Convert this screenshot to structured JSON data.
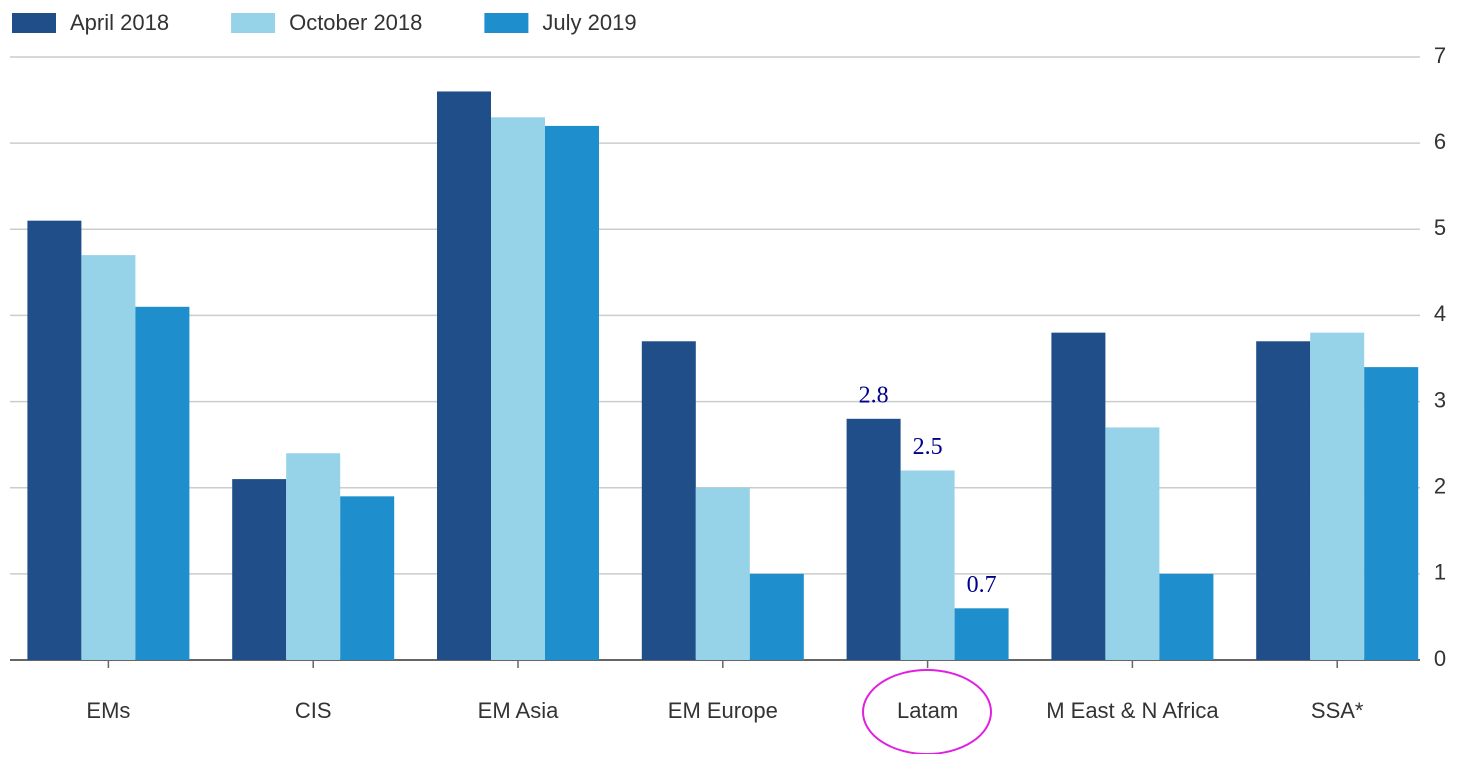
{
  "chart_data": {
    "type": "bar",
    "categories": [
      "EMs",
      "CIS",
      "EM Asia",
      "EM Europe",
      "Latam",
      "M East & N Africa",
      "SSA*"
    ],
    "series": [
      {
        "name": "April 2018",
        "color": "#1f4e89",
        "values": [
          5.1,
          2.1,
          6.6,
          3.7,
          2.8,
          3.8,
          3.7
        ]
      },
      {
        "name": "October 2018",
        "color": "#96d3e8",
        "values": [
          4.7,
          2.4,
          6.3,
          2.0,
          2.2,
          2.7,
          3.8
        ]
      },
      {
        "name": "July 2019",
        "color": "#1e8fcc",
        "values": [
          4.1,
          1.9,
          6.2,
          1.0,
          0.6,
          1.0,
          3.4
        ]
      }
    ],
    "annotations": [
      "2.8",
      "2.5",
      "0.7"
    ],
    "ylim": [
      0,
      7
    ],
    "yticks": [
      0,
      1,
      2,
      3,
      4,
      5,
      6,
      7
    ],
    "grid": true,
    "legend": "top-left"
  }
}
